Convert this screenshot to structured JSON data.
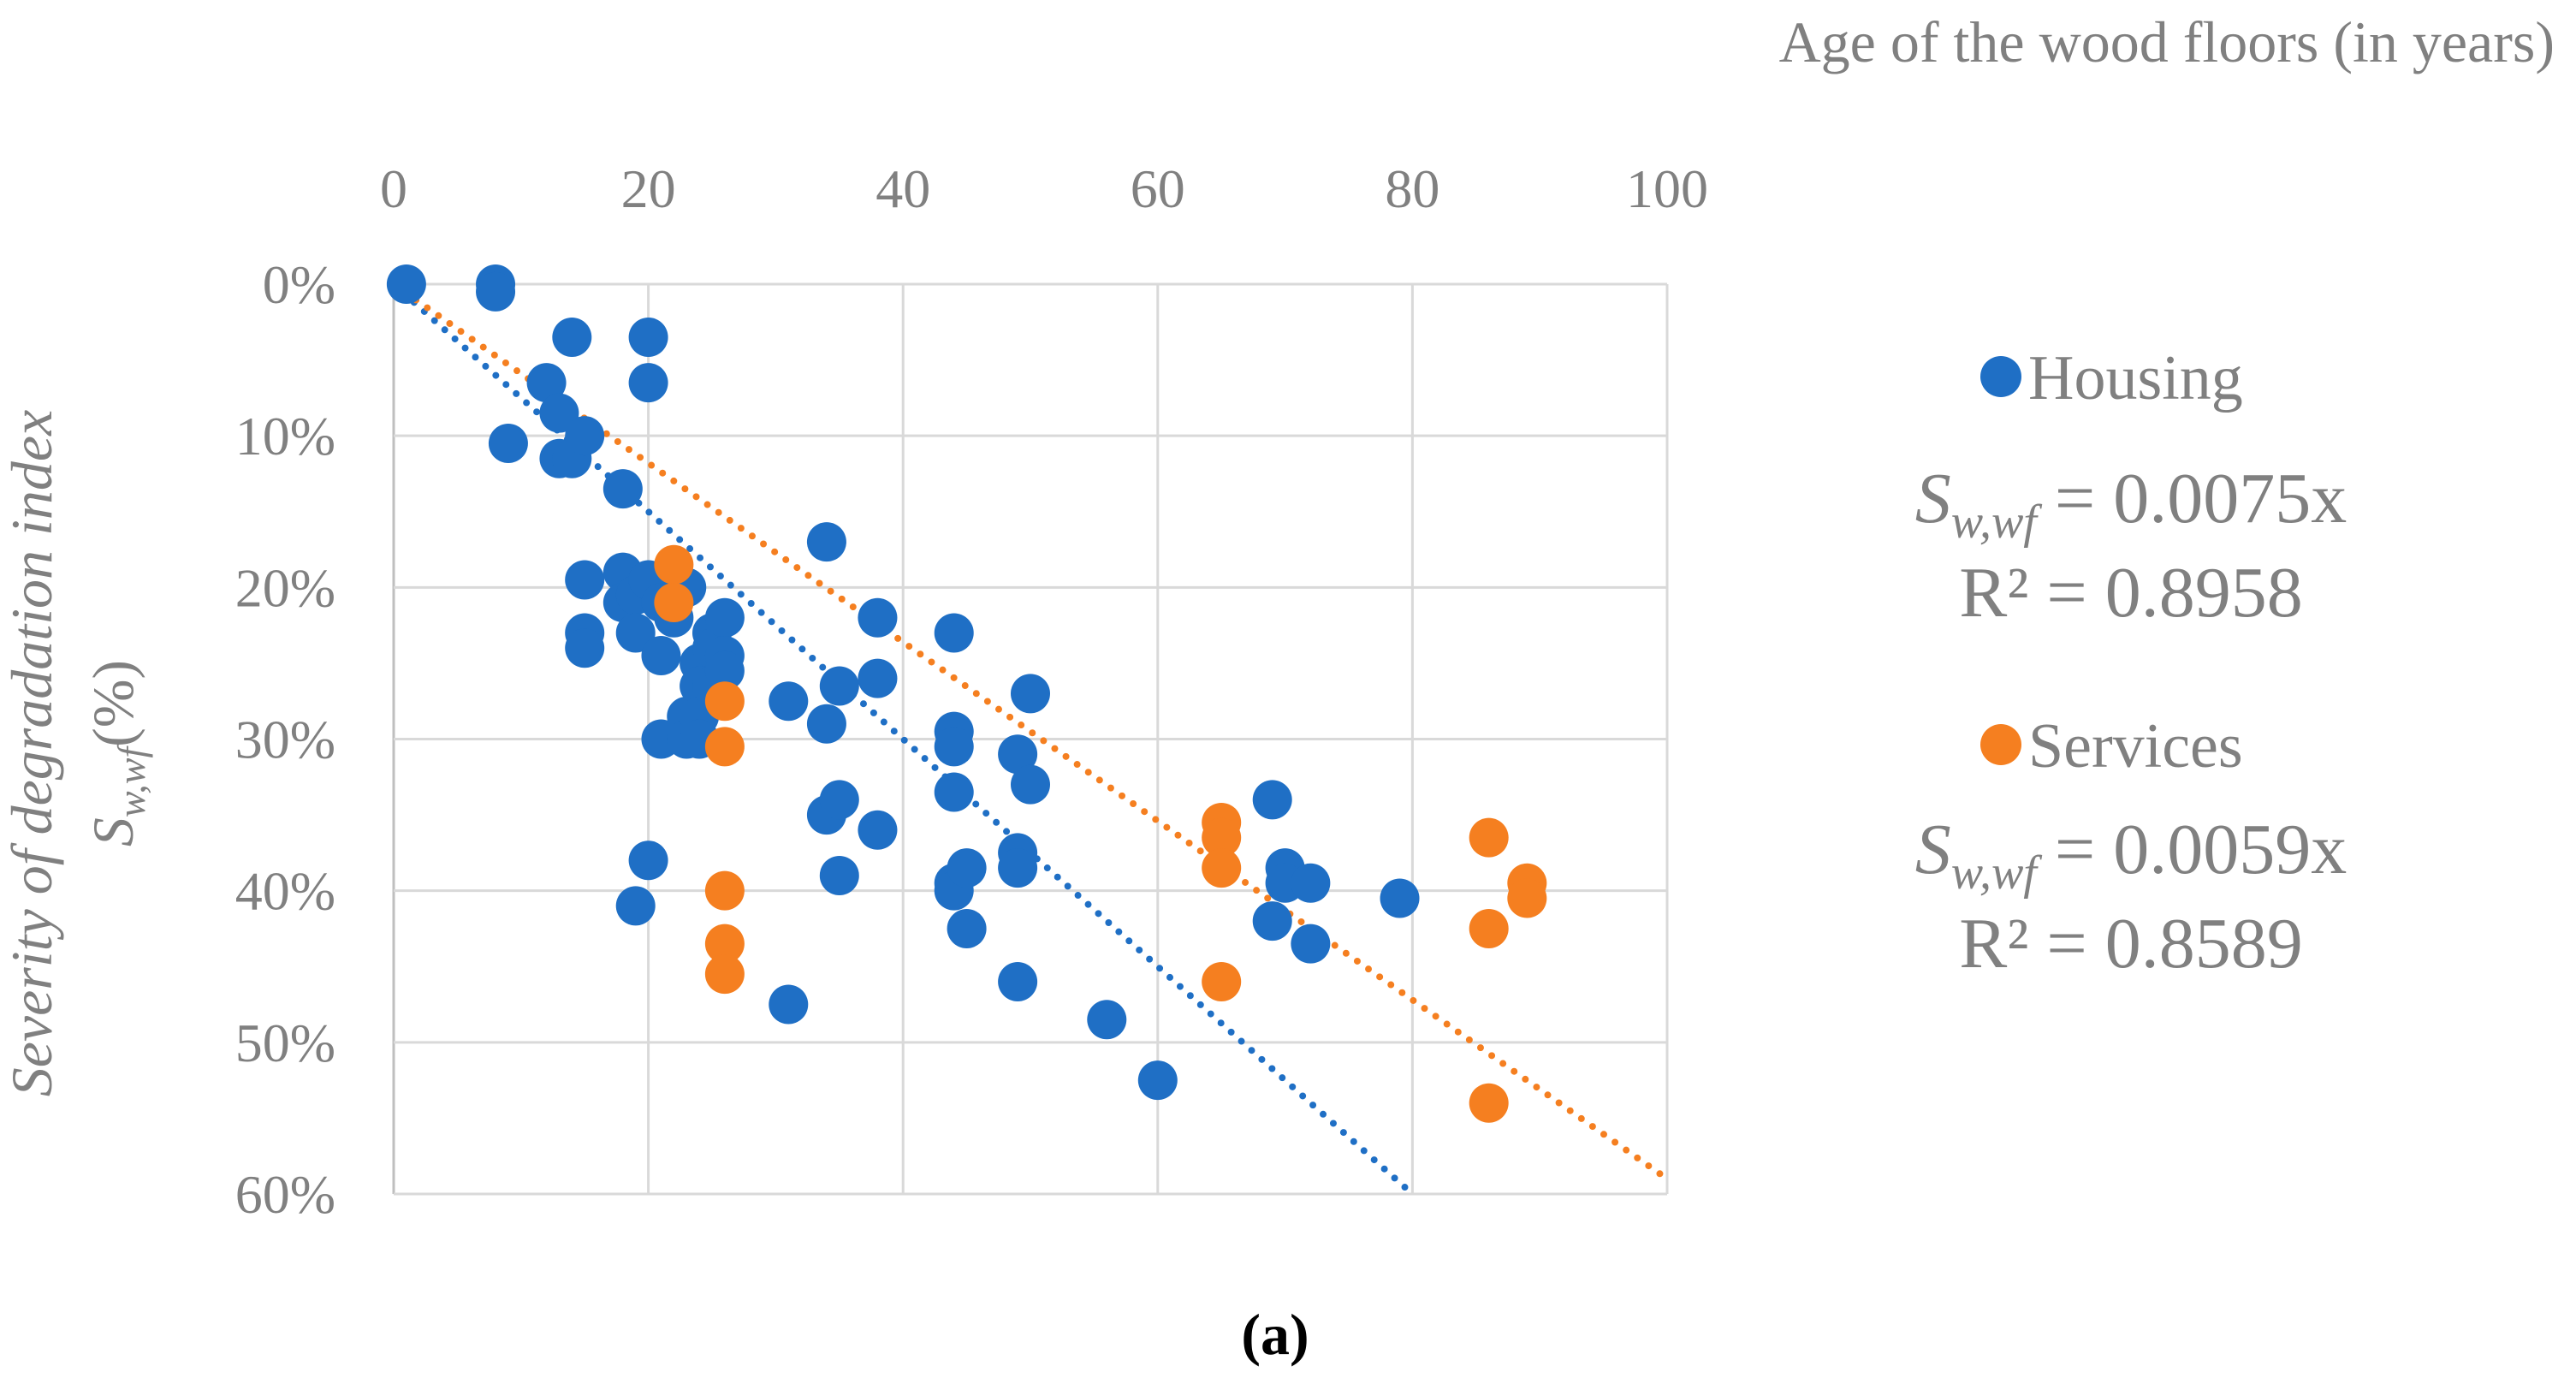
{
  "chart_data": {
    "type": "scatter",
    "xlabel": "Age of the wood floors (in years)",
    "ylabel_line1": "Severity of degradation index",
    "ylabel_sym": "S",
    "ylabel_sub": "w,wf",
    "ylabel_unit": "(%)",
    "xlim": [
      0,
      100
    ],
    "ylim": [
      0,
      60
    ],
    "y_inverted": true,
    "x_ticks": [
      "0",
      "20",
      "40",
      "60",
      "80",
      "100"
    ],
    "y_ticks": [
      "0%",
      "10%",
      "20%",
      "30%",
      "40%",
      "50%",
      "60%"
    ],
    "grid": true,
    "legend_position": "right",
    "caption": "(a)",
    "series": [
      {
        "name": "Housing",
        "color": "#1f6fc5",
        "trend_slope_percent_per_year": 0.75,
        "equation": {
          "sym": "S",
          "sub": "w,wf",
          "rhs": " = 0.0075x"
        },
        "r2": "R² = 0.8958",
        "points": [
          [
            1,
            0
          ],
          [
            8,
            0
          ],
          [
            8,
            0.5
          ],
          [
            9,
            10.5
          ],
          [
            12,
            6.5
          ],
          [
            13,
            8.5
          ],
          [
            13,
            11.5
          ],
          [
            14,
            3.5
          ],
          [
            14,
            11.5
          ],
          [
            15,
            10
          ],
          [
            15,
            19.5
          ],
          [
            15,
            23
          ],
          [
            15,
            24
          ],
          [
            18,
            13.5
          ],
          [
            18,
            19
          ],
          [
            18,
            21
          ],
          [
            19,
            20.5
          ],
          [
            19,
            23
          ],
          [
            19,
            41
          ],
          [
            20,
            3.5
          ],
          [
            20,
            6.5
          ],
          [
            20,
            19.5
          ],
          [
            20,
            38
          ],
          [
            21,
            21
          ],
          [
            21,
            24.5
          ],
          [
            21,
            30
          ],
          [
            22,
            22
          ],
          [
            23,
            20
          ],
          [
            23,
            28.5
          ],
          [
            23,
            30
          ],
          [
            24,
            25
          ],
          [
            24,
            26.5
          ],
          [
            24,
            28.5
          ],
          [
            24,
            30
          ],
          [
            25,
            23
          ],
          [
            25,
            24
          ],
          [
            25,
            26.5
          ],
          [
            26,
            22
          ],
          [
            26,
            24.5
          ],
          [
            26,
            25.5
          ],
          [
            31,
            27.5
          ],
          [
            31,
            47.5
          ],
          [
            34,
            17
          ],
          [
            34,
            29
          ],
          [
            34,
            35
          ],
          [
            35,
            26.5
          ],
          [
            35,
            34
          ],
          [
            35,
            39
          ],
          [
            38,
            22
          ],
          [
            38,
            26
          ],
          [
            38,
            36
          ],
          [
            44,
            23
          ],
          [
            44,
            29.5
          ],
          [
            44,
            30.5
          ],
          [
            44,
            33.5
          ],
          [
            44,
            39.5
          ],
          [
            44,
            40
          ],
          [
            45,
            38.5
          ],
          [
            45,
            42.5
          ],
          [
            49,
            31
          ],
          [
            49,
            37.5
          ],
          [
            49,
            38.5
          ],
          [
            49,
            46
          ],
          [
            50,
            27
          ],
          [
            50,
            33
          ],
          [
            56,
            48.5
          ],
          [
            60,
            52.5
          ],
          [
            69,
            34
          ],
          [
            69,
            42
          ],
          [
            70,
            38.5
          ],
          [
            70,
            39.5
          ],
          [
            72,
            39.5
          ],
          [
            72,
            43.5
          ],
          [
            79,
            40.5
          ]
        ]
      },
      {
        "name": "Services",
        "color": "#f57f20",
        "trend_slope_percent_per_year": 0.59,
        "equation": {
          "sym": "S",
          "sub": "w,wf",
          "rhs": " = 0.0059x"
        },
        "r2": "R² = 0.8589",
        "points": [
          [
            22,
            18.5
          ],
          [
            22,
            21
          ],
          [
            26,
            27.5
          ],
          [
            26,
            30.5
          ],
          [
            26,
            40
          ],
          [
            26,
            43.5
          ],
          [
            26,
            45.5
          ],
          [
            65,
            35.5
          ],
          [
            65,
            36.5
          ],
          [
            65,
            38.5
          ],
          [
            65,
            46
          ],
          [
            86,
            36.5
          ],
          [
            86,
            42.5
          ],
          [
            86,
            54
          ],
          [
            89,
            39.5
          ],
          [
            89,
            40.5
          ]
        ]
      }
    ]
  }
}
